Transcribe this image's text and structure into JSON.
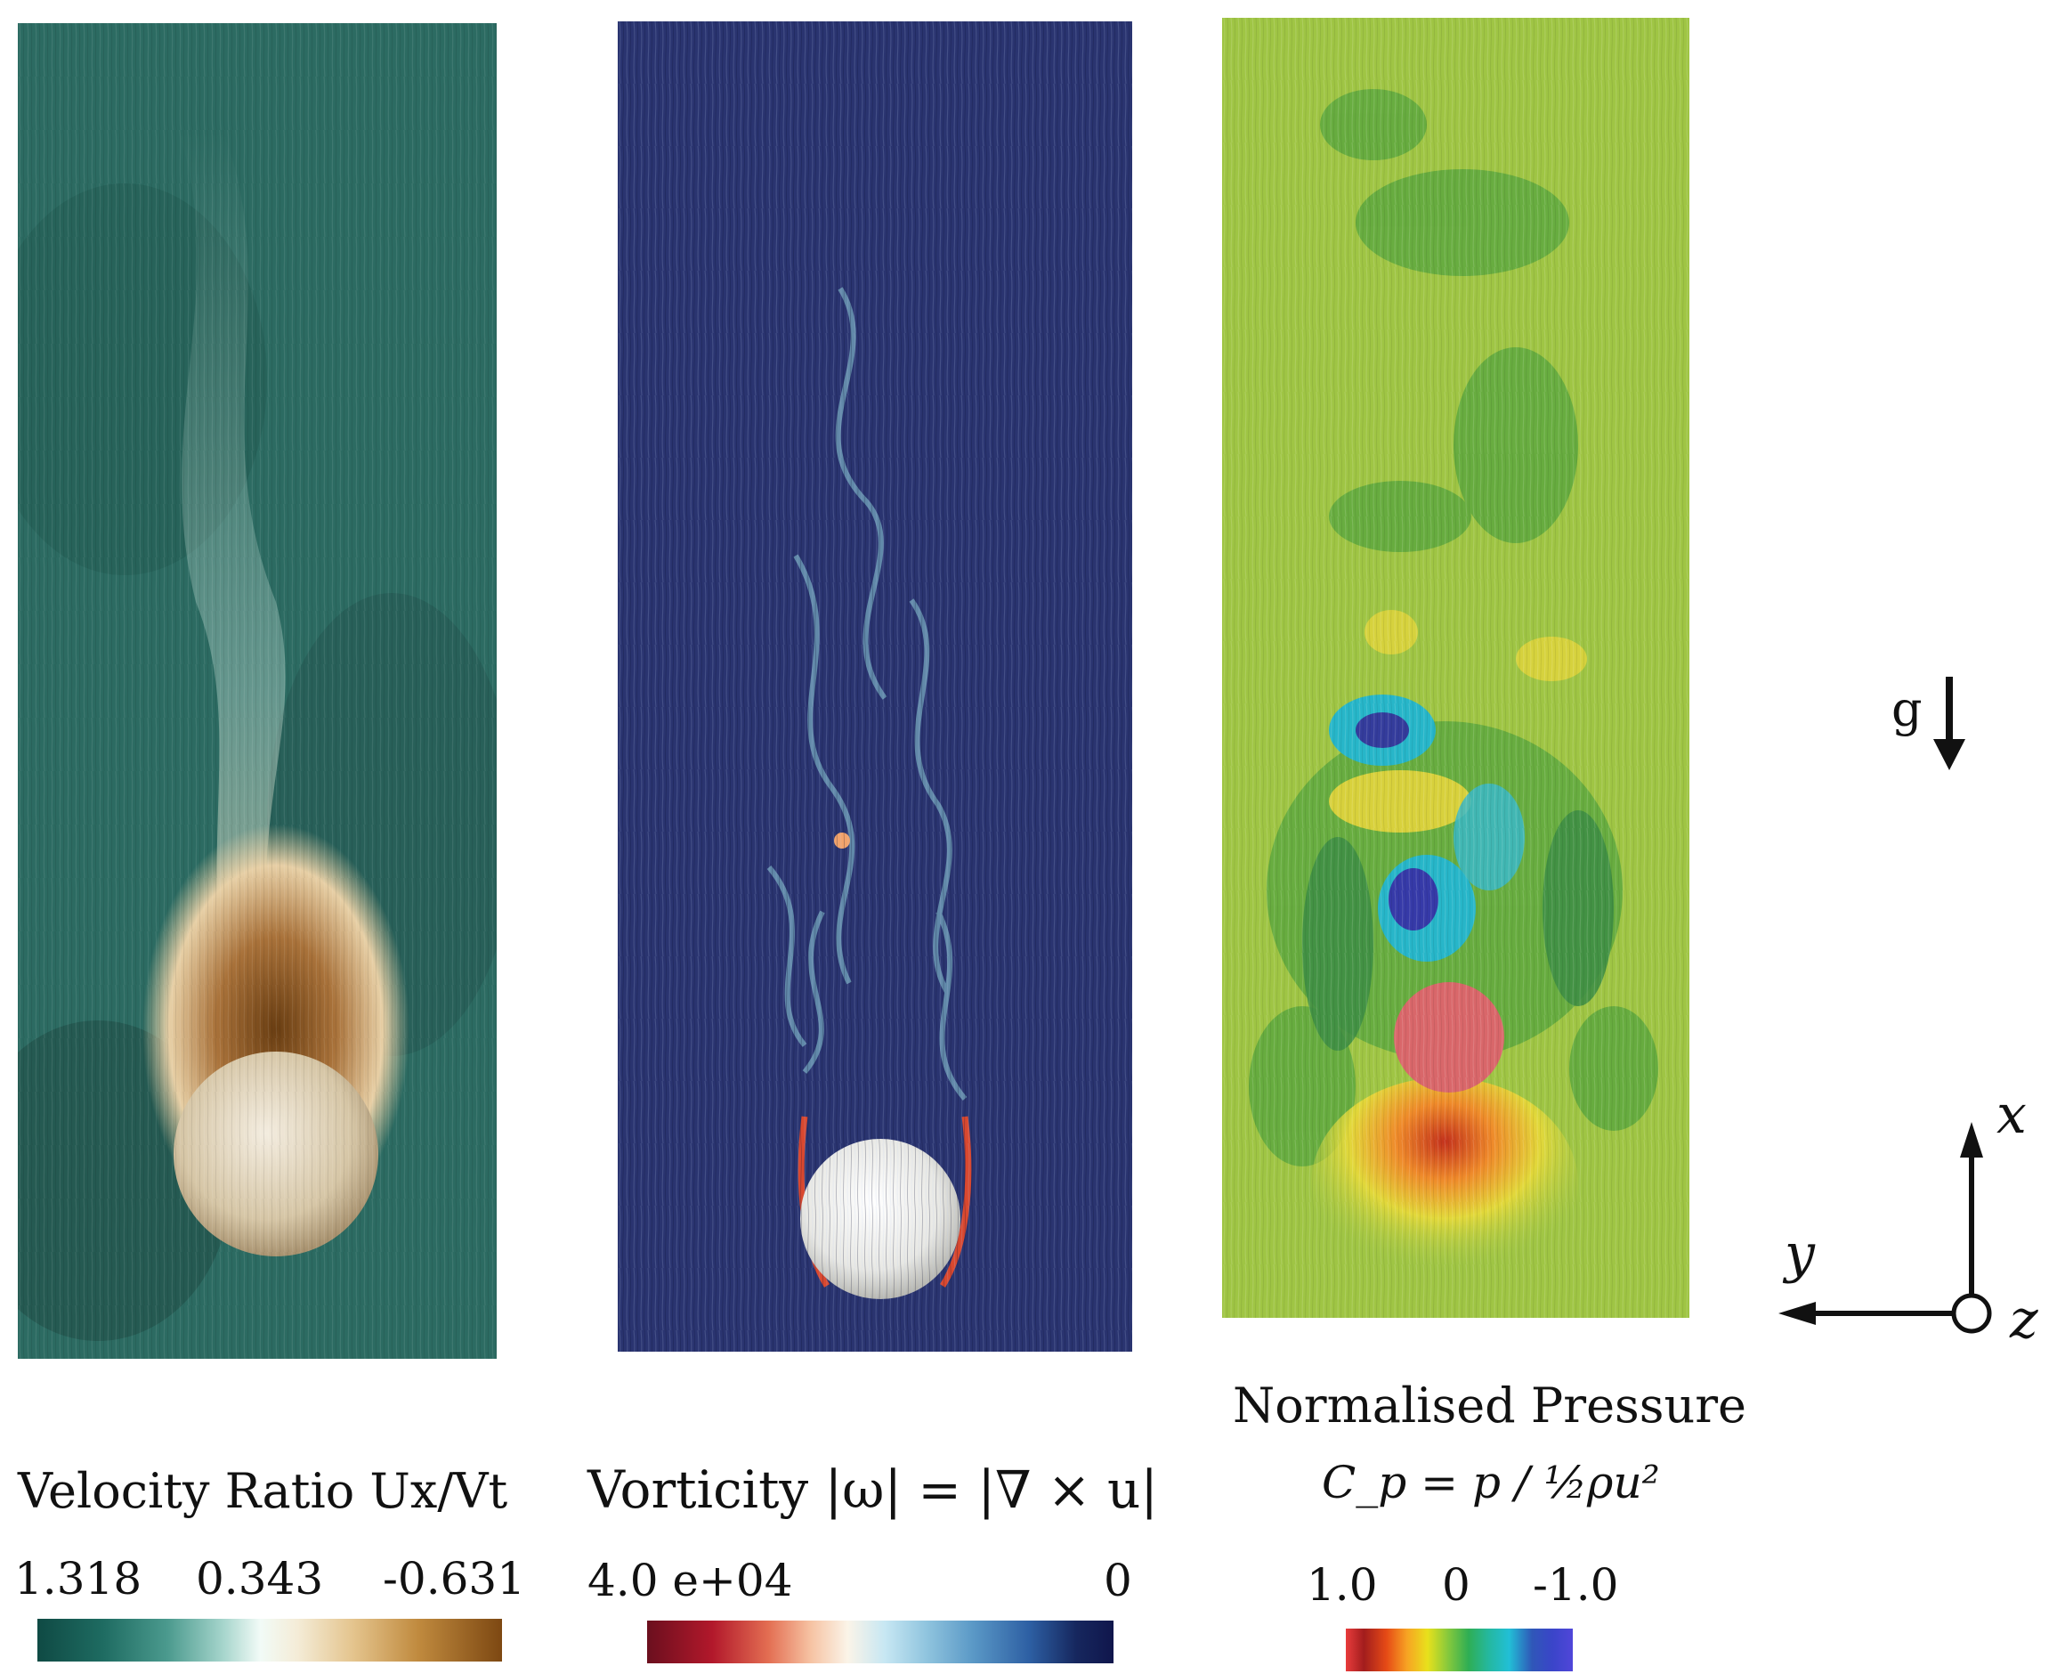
{
  "panels": {
    "velocity": {
      "legend_title": "Velocity Ratio Ux/Vt",
      "ticks": [
        "1.318",
        "0.343",
        "-0.631"
      ],
      "colormap": [
        "#0f4a44",
        "#4b9a8e",
        "#f2fbf7",
        "#e4c48d",
        "#7d4812"
      ],
      "background_color": "#2c6b62"
    },
    "vorticity": {
      "legend_title": "Vorticity |ω| = |∇ × u|",
      "ticks": [
        "4.0 e+04",
        "0"
      ],
      "colormap": [
        "#6b0f1e",
        "#e36e52",
        "#fbf4e8",
        "#5a98c6",
        "#10164c"
      ],
      "background_color": "#2a3470"
    },
    "pressure": {
      "legend_title": "Normalised Pressure",
      "formula": "C_p = p / ½ρu²",
      "ticks": [
        "1.0",
        "0",
        "-1.0"
      ],
      "colormap": [
        "#e93c3c",
        "#e64b16",
        "#e8e11c",
        "#2fae54",
        "#22bfd6",
        "#5046d9"
      ],
      "background_color": "#9fc544"
    }
  },
  "gravity_label": "g",
  "axis_labels": {
    "x": "x",
    "y": "y",
    "z": "z"
  }
}
